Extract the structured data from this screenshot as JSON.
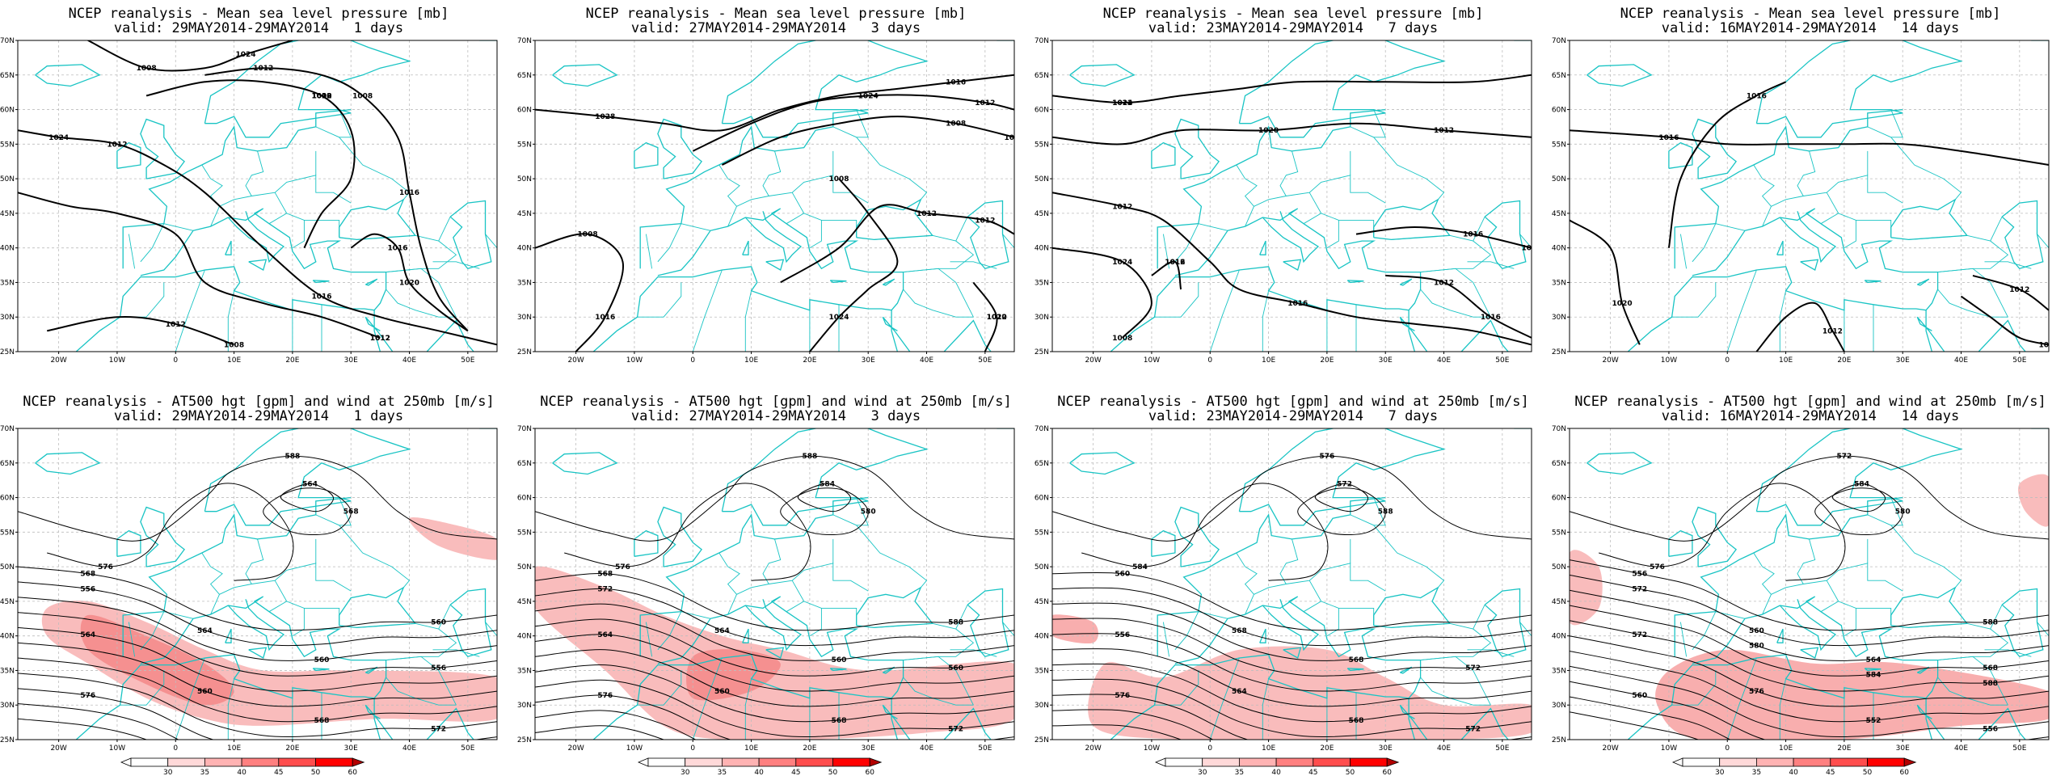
{
  "panels": [
    {
      "id": "mslp-1d",
      "row": 0,
      "col": 0,
      "title": "NCEP reanalysis - Mean sea level pressure [mb]",
      "valid": "valid: 29MAY2014-29MAY2014   1 days",
      "kind": "mslp",
      "labels": [
        "1024",
        "1020",
        "1016",
        "1012",
        "1008",
        "1024",
        "1020",
        "1016",
        "1012",
        "1008",
        "1012",
        "1012",
        "1008",
        "1016",
        "1012",
        "1008",
        "1012"
      ]
    },
    {
      "id": "mslp-3d",
      "row": 0,
      "col": 1,
      "title": "NCEP reanalysis - Mean sea level pressure [mb]",
      "valid": "valid: 27MAY2014-29MAY2014   3 days",
      "kind": "mslp",
      "labels": [
        "1028",
        "1024",
        "1020",
        "1016",
        "1012",
        "1024",
        "1020",
        "1016",
        "1012",
        "1008",
        "1008",
        "1012",
        "1008",
        "1012"
      ]
    },
    {
      "id": "mslp-7d",
      "row": 0,
      "col": 2,
      "title": "NCEP reanalysis - Mean sea level pressure [mb]",
      "valid": "valid: 23MAY2014-29MAY2014   7 days",
      "kind": "mslp",
      "labels": [
        "1024",
        "1020",
        "1016",
        "1024",
        "1020",
        "1016",
        "1016",
        "1012",
        "1012",
        "1012",
        "1008",
        "1016",
        "1012",
        "1012"
      ]
    },
    {
      "id": "mslp-14d",
      "row": 0,
      "col": 3,
      "title": "NCEP reanalysis - Mean sea level pressure [mb]",
      "valid": "valid: 16MAY2014-29MAY2014   14 days",
      "kind": "mslp",
      "labels": [
        "1016",
        "1016",
        "1020",
        "1012",
        "1008",
        "1012"
      ]
    },
    {
      "id": "z500-1d",
      "row": 1,
      "col": 0,
      "title": "NCEP reanalysis - AT500 hgt [gpm] and wind at 250mb [m/s]",
      "valid": "valid: 29MAY2014-29MAY2014   1 days",
      "kind": "z500",
      "labels": [
        "568",
        "564",
        "560",
        "556",
        "564",
        "560",
        "568",
        "572",
        "576",
        "580",
        "584",
        "588",
        "576",
        "568",
        "564",
        "560",
        "556"
      ]
    },
    {
      "id": "z500-3d",
      "row": 1,
      "col": 1,
      "title": "NCEP reanalysis - AT500 hgt [gpm] and wind at 250mb [m/s]",
      "valid": "valid: 27MAY2014-29MAY2014   3 days",
      "kind": "z500",
      "labels": [
        "568",
        "564",
        "560",
        "560",
        "564",
        "560",
        "568",
        "572",
        "576",
        "580",
        "584",
        "588",
        "576",
        "580",
        "584",
        "588",
        "572"
      ]
    },
    {
      "id": "z500-7d",
      "row": 1,
      "col": 2,
      "title": "NCEP reanalysis - AT500 hgt [gpm] and wind at 250mb [m/s]",
      "valid": "valid: 23MAY2014-29MAY2014   7 days",
      "kind": "z500",
      "labels": [
        "560",
        "568",
        "568",
        "572",
        "556",
        "564",
        "568",
        "572",
        "576",
        "580",
        "584",
        "576",
        "584",
        "588",
        "572"
      ]
    },
    {
      "id": "z500-14d",
      "row": 1,
      "col": 3,
      "title": "NCEP reanalysis - AT500 hgt [gpm] and wind at 250mb [m/s]",
      "valid": "valid: 16MAY2014-29MAY2014   14 days",
      "kind": "z500",
      "labels": [
        "556",
        "560",
        "564",
        "568",
        "572",
        "576",
        "552",
        "556",
        "560",
        "564",
        "568",
        "572",
        "576",
        "580",
        "584",
        "588",
        "572",
        "580",
        "584",
        "588"
      ]
    }
  ],
  "lat_ticks": [
    "70N",
    "65N",
    "60N",
    "55N",
    "50N",
    "45N",
    "40N",
    "35N",
    "30N",
    "25N"
  ],
  "lon_ticks": [
    "20W",
    "10W",
    "0",
    "10E",
    "20E",
    "30E",
    "40E",
    "50E"
  ],
  "legend": {
    "ticks": [
      "30",
      "35",
      "40",
      "45",
      "50",
      "60"
    ],
    "colors": [
      "#ffffff",
      "#ffd9d9",
      "#ffb3b3",
      "#ff8080",
      "#ff4d4d",
      "#ff0000",
      "#b30000"
    ]
  },
  "colors": {
    "coast": "#19c4c4",
    "contour": "#000000",
    "grid": "#bdbdbd",
    "shade": "#f26b6b"
  }
}
